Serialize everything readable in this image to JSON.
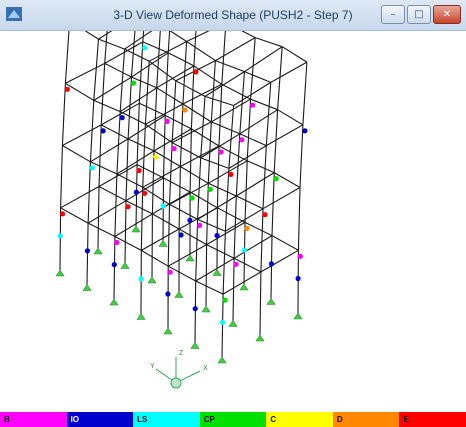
{
  "window": {
    "title": "3-D View  Deformed Shape (PUSH2 - Step 7)",
    "controls": {
      "minimize": "–",
      "maximize": "□",
      "close": "✕"
    }
  },
  "axes": {
    "x": "X",
    "y": "Y",
    "z": "Z"
  },
  "legend": [
    {
      "label": "B",
      "color": "#ff00ff"
    },
    {
      "label": "IO",
      "color": "#0000cc"
    },
    {
      "label": "LS",
      "color": "#00ffff"
    },
    {
      "label": "CP",
      "color": "#00e000"
    },
    {
      "label": "C",
      "color": "#ffff00"
    },
    {
      "label": "D",
      "color": "#ff8800"
    },
    {
      "label": "E",
      "color": "#ff0000"
    }
  ],
  "colors": {
    "frame": "#1a1a1a",
    "background": "#ffffff",
    "support": "#44cc44"
  }
}
